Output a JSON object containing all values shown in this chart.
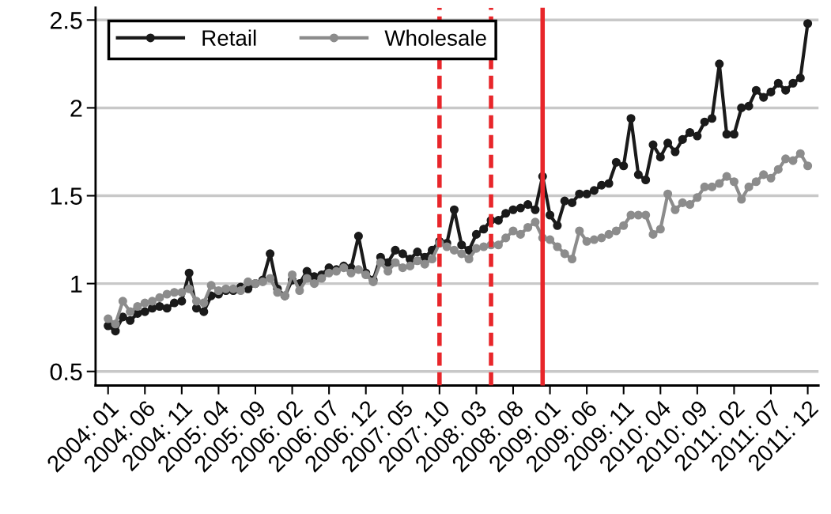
{
  "chart_data": {
    "type": "line",
    "x": [
      "2004-01",
      "2004-02",
      "2004-03",
      "2004-04",
      "2004-05",
      "2004-06",
      "2004-07",
      "2004-08",
      "2004-09",
      "2004-10",
      "2004-11",
      "2004-12",
      "2005-01",
      "2005-02",
      "2005-03",
      "2005-04",
      "2005-05",
      "2005-06",
      "2005-07",
      "2005-08",
      "2005-09",
      "2005-10",
      "2005-11",
      "2005-12",
      "2006-01",
      "2006-02",
      "2006-03",
      "2006-04",
      "2006-05",
      "2006-06",
      "2006-07",
      "2006-08",
      "2006-09",
      "2006-10",
      "2006-11",
      "2006-12",
      "2007-01",
      "2007-02",
      "2007-03",
      "2007-04",
      "2007-05",
      "2007-06",
      "2007-07",
      "2007-08",
      "2007-09",
      "2007-10",
      "2007-11",
      "2007-12",
      "2008-01",
      "2008-02",
      "2008-03",
      "2008-04",
      "2008-05",
      "2008-06",
      "2008-07",
      "2008-08",
      "2008-09",
      "2008-10",
      "2008-11",
      "2008-12",
      "2009-01",
      "2009-02",
      "2009-03",
      "2009-04",
      "2009-05",
      "2009-06",
      "2009-07",
      "2009-08",
      "2009-09",
      "2009-10",
      "2009-11",
      "2009-12",
      "2010-01",
      "2010-02",
      "2010-03",
      "2010-04",
      "2010-05",
      "2010-06",
      "2010-07",
      "2010-08",
      "2010-09",
      "2010-10",
      "2010-11",
      "2010-12",
      "2011-01",
      "2011-02",
      "2011-03",
      "2011-04",
      "2011-05",
      "2011-06",
      "2011-07",
      "2011-08",
      "2011-09",
      "2011-10",
      "2011-11",
      "2011-12"
    ],
    "series": [
      {
        "name": "Retail",
        "color": "#1a1a1a",
        "values": [
          0.76,
          0.73,
          0.81,
          0.79,
          0.83,
          0.84,
          0.86,
          0.87,
          0.86,
          0.89,
          0.9,
          1.06,
          0.86,
          0.84,
          0.93,
          0.94,
          0.96,
          0.96,
          0.98,
          0.97,
          1.0,
          1.02,
          1.17,
          0.97,
          0.93,
          1.02,
          1.0,
          1.07,
          1.04,
          1.05,
          1.09,
          1.08,
          1.1,
          1.09,
          1.27,
          1.06,
          1.02,
          1.15,
          1.12,
          1.19,
          1.17,
          1.14,
          1.18,
          1.15,
          1.19,
          1.24,
          1.23,
          1.42,
          1.22,
          1.19,
          1.28,
          1.31,
          1.36,
          1.36,
          1.4,
          1.42,
          1.43,
          1.45,
          1.42,
          1.61,
          1.39,
          1.33,
          1.47,
          1.46,
          1.51,
          1.51,
          1.53,
          1.56,
          1.57,
          1.69,
          1.67,
          1.94,
          1.62,
          1.59,
          1.79,
          1.72,
          1.8,
          1.75,
          1.82,
          1.86,
          1.84,
          1.92,
          1.94,
          2.25,
          1.85,
          1.85,
          2.0,
          2.01,
          2.1,
          2.06,
          2.09,
          2.14,
          2.1,
          2.14,
          2.17,
          2.48
        ]
      },
      {
        "name": "Wholesale",
        "color": "#8c8c8c",
        "values": [
          0.8,
          0.77,
          0.9,
          0.84,
          0.87,
          0.89,
          0.9,
          0.92,
          0.94,
          0.95,
          0.95,
          0.97,
          0.9,
          0.89,
          0.99,
          0.96,
          0.97,
          0.97,
          0.96,
          1.01,
          1.0,
          1.01,
          1.03,
          0.95,
          0.93,
          1.05,
          0.96,
          1.03,
          1.0,
          1.03,
          1.06,
          1.07,
          1.09,
          1.06,
          1.08,
          1.05,
          1.01,
          1.12,
          1.07,
          1.12,
          1.09,
          1.1,
          1.13,
          1.11,
          1.14,
          1.23,
          1.21,
          1.19,
          1.17,
          1.14,
          1.2,
          1.21,
          1.22,
          1.22,
          1.26,
          1.3,
          1.28,
          1.32,
          1.35,
          1.26,
          1.25,
          1.21,
          1.17,
          1.14,
          1.3,
          1.24,
          1.25,
          1.26,
          1.28,
          1.3,
          1.33,
          1.39,
          1.39,
          1.39,
          1.28,
          1.31,
          1.51,
          1.42,
          1.46,
          1.45,
          1.49,
          1.55,
          1.55,
          1.57,
          1.61,
          1.58,
          1.48,
          1.55,
          1.58,
          1.62,
          1.6,
          1.65,
          1.71,
          1.7,
          1.74,
          1.67
        ]
      }
    ],
    "xlim": [
      "2003-11-10",
      "2012-01-15"
    ],
    "xticks": [
      {
        "value": "2004-01",
        "label": "2004: 01"
      },
      {
        "value": "2004-06",
        "label": "2004: 06"
      },
      {
        "value": "2004-11",
        "label": "2004: 11"
      },
      {
        "value": "2005-04",
        "label": "2005: 04"
      },
      {
        "value": "2005-09",
        "label": "2005: 09"
      },
      {
        "value": "2006-02",
        "label": "2006: 02"
      },
      {
        "value": "2006-07",
        "label": "2006: 07"
      },
      {
        "value": "2006-12",
        "label": "2006: 12"
      },
      {
        "value": "2007-05",
        "label": "2007: 05"
      },
      {
        "value": "2007-10",
        "label": "2007: 10"
      },
      {
        "value": "2008-03",
        "label": "2008: 03"
      },
      {
        "value": "2008-08",
        "label": "2008: 08"
      },
      {
        "value": "2009-01",
        "label": "2009: 01"
      },
      {
        "value": "2009-06",
        "label": "2009: 06"
      },
      {
        "value": "2009-11",
        "label": "2009: 11"
      },
      {
        "value": "2010-04",
        "label": "2010: 04"
      },
      {
        "value": "2010-09",
        "label": "2010: 09"
      },
      {
        "value": "2011-02",
        "label": "2011: 02"
      },
      {
        "value": "2011-07",
        "label": "2011: 07"
      },
      {
        "value": "2011-12",
        "label": "2011: 12"
      }
    ],
    "ylim": [
      0.42,
      2.57
    ],
    "yticks": [
      0.5,
      1,
      1.5,
      2,
      2.5
    ],
    "grid": "y",
    "legend": "top left",
    "marker": "circle",
    "line_style": "solid",
    "ref_lines": [
      {
        "axis": "x",
        "value": "2007-10",
        "color": "#e8262a",
        "line_style": "dashed"
      },
      {
        "axis": "x",
        "value": "2008-05",
        "color": "#e8262a",
        "line_style": "dashed"
      },
      {
        "axis": "x",
        "value": "2008-12",
        "color": "#e8262a",
        "line_style": "solid"
      }
    ]
  }
}
